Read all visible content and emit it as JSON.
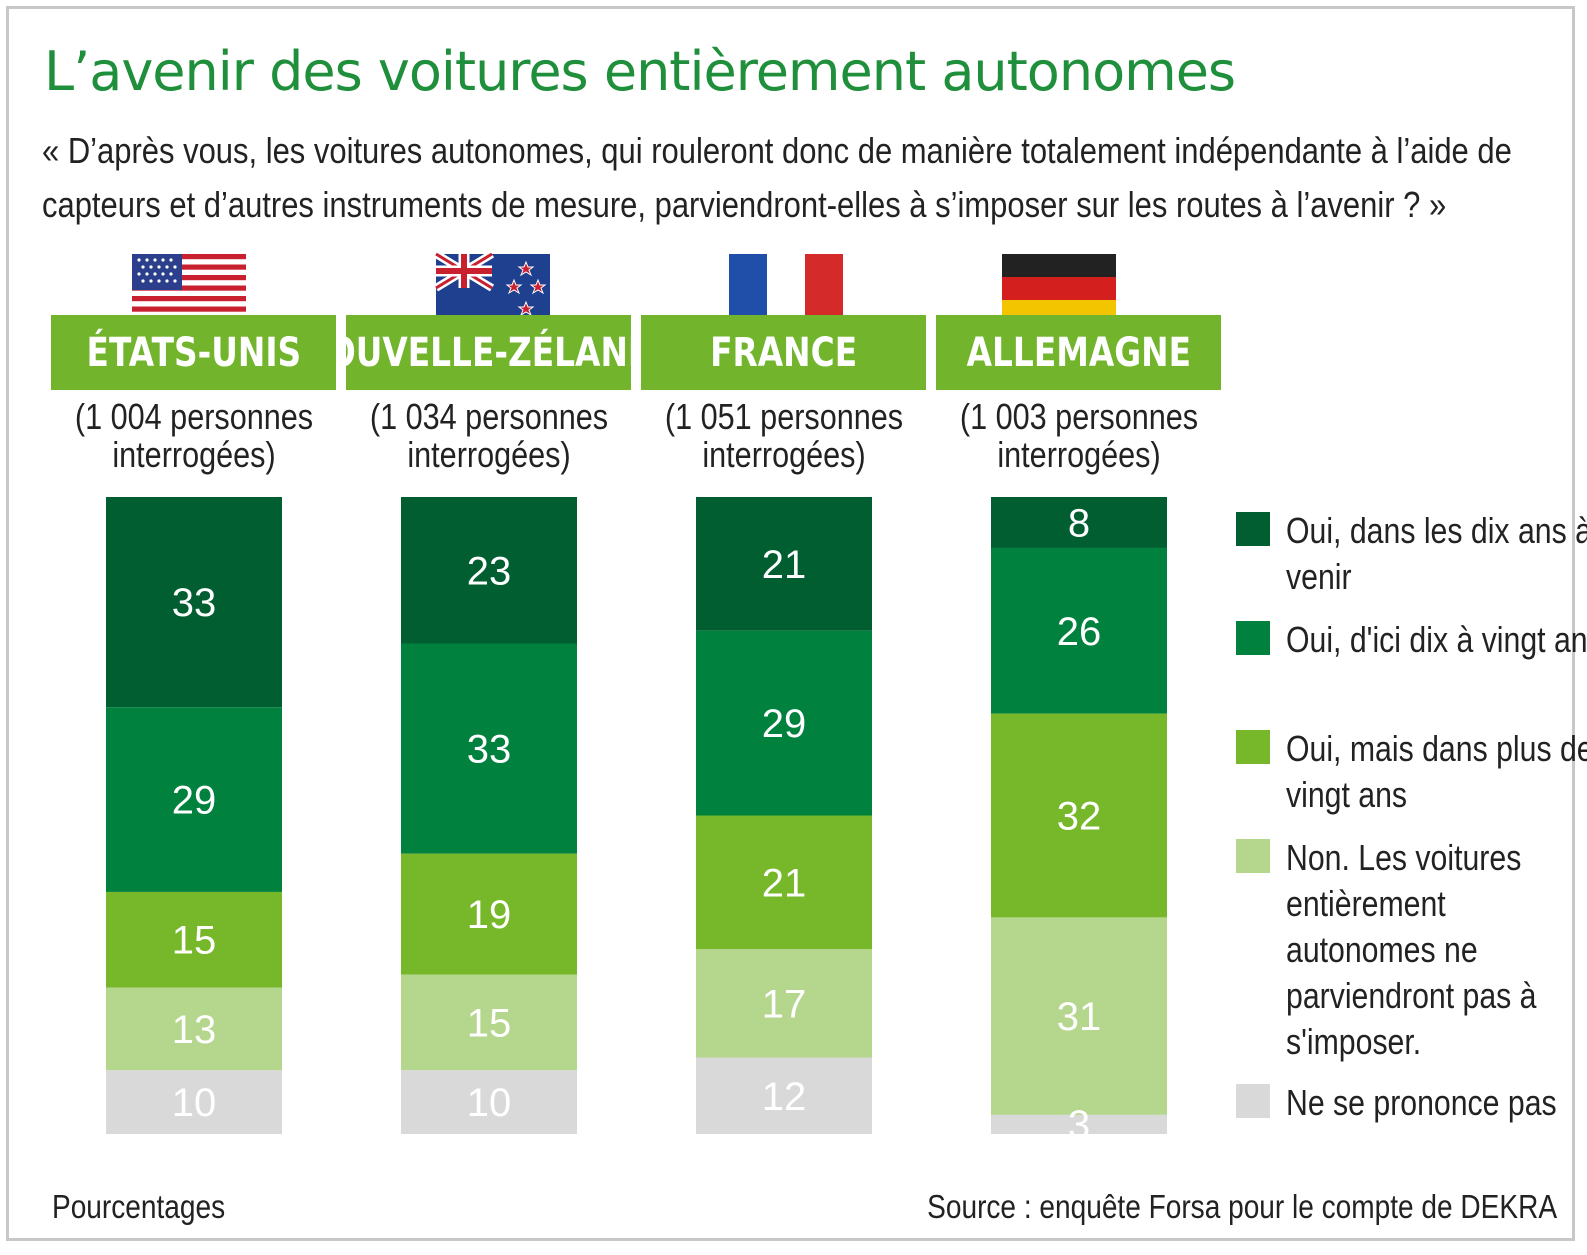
{
  "title": "L’avenir des voitures entièrement autonomes",
  "question": "« D’après vous, les voitures autonomes, qui rouleront donc de manière totalement indépendante à l’aide de capteurs et d’autres instruments de mesure, parviendront-elles à s’imposer sur les routes à l’avenir ? »",
  "footer": {
    "units": "Pourcentages",
    "source": "Source : enquête Forsa pour le compte de DEKRA"
  },
  "colors": {
    "brand": "#1f8f3c",
    "country_box": "#72b52c"
  },
  "countries": [
    {
      "name": "ÉTATS-UNIS",
      "sample": "(1 004 personnes interrogées)",
      "flag": "usa-flag-icon"
    },
    {
      "name": "NOUVELLE-ZÉLANDE",
      "sample": "(1 034 personnes interrogées)",
      "flag": "new-zealand-flag-icon"
    },
    {
      "name": "FRANCE",
      "sample": "(1 051 personnes interrogées)",
      "flag": "france-flag-icon"
    },
    {
      "name": "ALLEMAGNE",
      "sample": "(1 003 personnes interrogées)",
      "flag": "germany-flag-icon"
    }
  ],
  "legend": [
    {
      "label": "Oui, dans les dix ans à venir",
      "color": "#005e30"
    },
    {
      "label": "Oui, d'ici dix à vingt ans",
      "color": "#00813e"
    },
    {
      "label": "Oui, mais dans plus de vingt ans",
      "color": "#76b82a"
    },
    {
      "label": "Non. Les voitures entièrement autonomes ne parviendront pas à s'imposer.",
      "color": "#b5d68d"
    },
    {
      "label": "Ne se prononce pas",
      "color": "#d9d9d9"
    }
  ],
  "chart_data": {
    "type": "bar",
    "stacked": true,
    "unit": "%",
    "categories": [
      "ÉTATS-UNIS",
      "NOUVELLE-ZÉLANDE",
      "FRANCE",
      "ALLEMAGNE"
    ],
    "series": [
      {
        "name": "Oui, dans les dix ans à venir",
        "color": "#005e30",
        "values": [
          33,
          23,
          21,
          8
        ]
      },
      {
        "name": "Oui, d'ici dix à vingt ans",
        "color": "#00813e",
        "values": [
          29,
          33,
          29,
          26
        ]
      },
      {
        "name": "Oui, mais dans plus de vingt ans",
        "color": "#76b82a",
        "values": [
          15,
          19,
          21,
          32
        ]
      },
      {
        "name": "Non. Les voitures entièrement autonomes ne parviendront pas à s'imposer.",
        "color": "#b5d68d",
        "values": [
          13,
          15,
          17,
          31
        ]
      },
      {
        "name": "Ne se prononce pas",
        "color": "#d9d9d9",
        "values": [
          10,
          10,
          12,
          3
        ]
      }
    ]
  }
}
